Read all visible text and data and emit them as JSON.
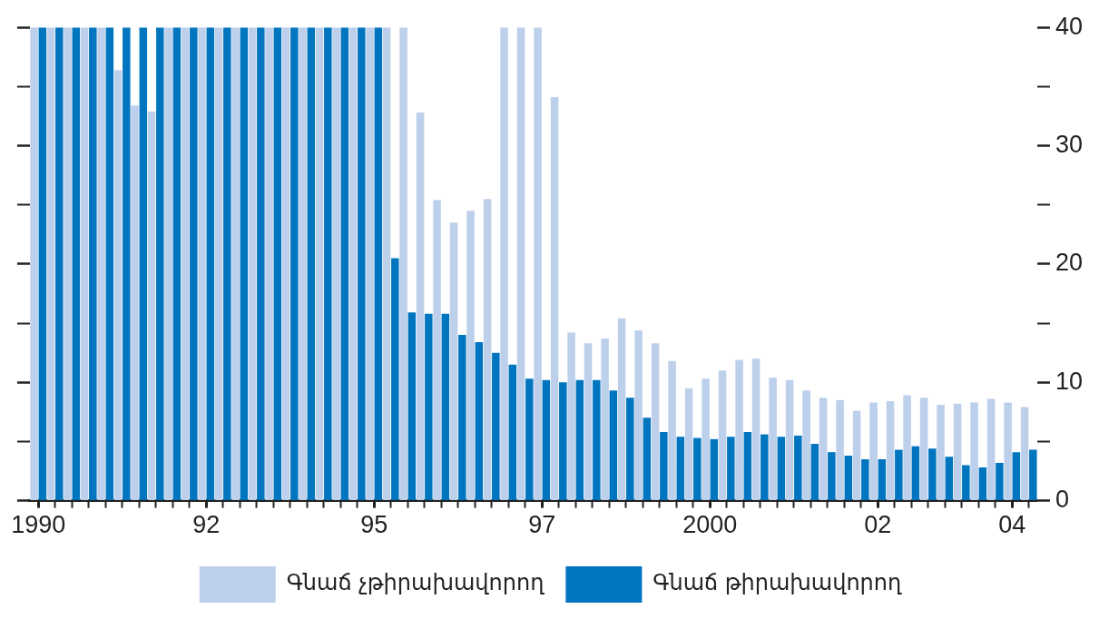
{
  "chart_data": {
    "type": "bar",
    "categories": [
      "1990",
      null,
      null,
      null,
      null,
      null,
      null,
      null,
      null,
      null,
      "92",
      null,
      null,
      null,
      null,
      null,
      null,
      null,
      null,
      null,
      "95",
      null,
      null,
      null,
      null,
      null,
      null,
      null,
      null,
      null,
      "97",
      null,
      null,
      null,
      null,
      null,
      null,
      null,
      null,
      null,
      "2000",
      null,
      null,
      null,
      null,
      null,
      null,
      null,
      null,
      null,
      "02",
      null,
      null,
      null,
      null,
      null,
      null,
      null,
      "04",
      null
    ],
    "series": [
      {
        "name": "Գնաճ չթիրախավորող",
        "color": "#bccfeb",
        "values": [
          40,
          40,
          40,
          40,
          40,
          36.4,
          33.4,
          32.9,
          40,
          40,
          40,
          40,
          40,
          40,
          40,
          40,
          40,
          40,
          40,
          40,
          40,
          40,
          40,
          32.8,
          25.4,
          23.5,
          24.5,
          25.5,
          40,
          40,
          40,
          34.1,
          14.2,
          13.3,
          13.7,
          15.4,
          14.4,
          13.3,
          11.8,
          9.5,
          10.3,
          11.0,
          11.9,
          12.0,
          10.4,
          10.2,
          9.3,
          8.7,
          8.5,
          7.6,
          8.3,
          8.4,
          8.9,
          8.7,
          8.1,
          8.2,
          8.3,
          8.6,
          8.3,
          7.9
        ]
      },
      {
        "name": "Գնաճ թիրախավորող",
        "color": "#0075bf",
        "values": [
          40,
          40,
          40,
          40,
          40,
          40,
          40,
          40,
          40,
          40,
          40,
          40,
          40,
          40,
          40,
          40,
          40,
          40,
          40,
          40,
          40,
          20.5,
          15.9,
          15.8,
          15.8,
          14.0,
          13.4,
          12.5,
          11.5,
          10.3,
          10.2,
          10.0,
          10.2,
          10.2,
          9.3,
          8.7,
          7.0,
          5.8,
          5.4,
          5.3,
          5.2,
          5.4,
          5.8,
          5.6,
          5.4,
          5.5,
          4.8,
          4.1,
          3.8,
          3.5,
          3.5,
          4.3,
          4.6,
          4.4,
          3.7,
          3.0,
          2.8,
          3.2,
          4.1,
          4.3
        ]
      }
    ],
    "ylim": [
      0,
      40
    ],
    "yticks": [
      0,
      {
        "value": 5,
        "label": null
      },
      10,
      {
        "value": 15,
        "label": null
      },
      20,
      {
        "value": 25,
        "label": null
      },
      30,
      {
        "value": 35,
        "label": null
      },
      40
    ],
    "grid": false,
    "legend": "bottom"
  }
}
